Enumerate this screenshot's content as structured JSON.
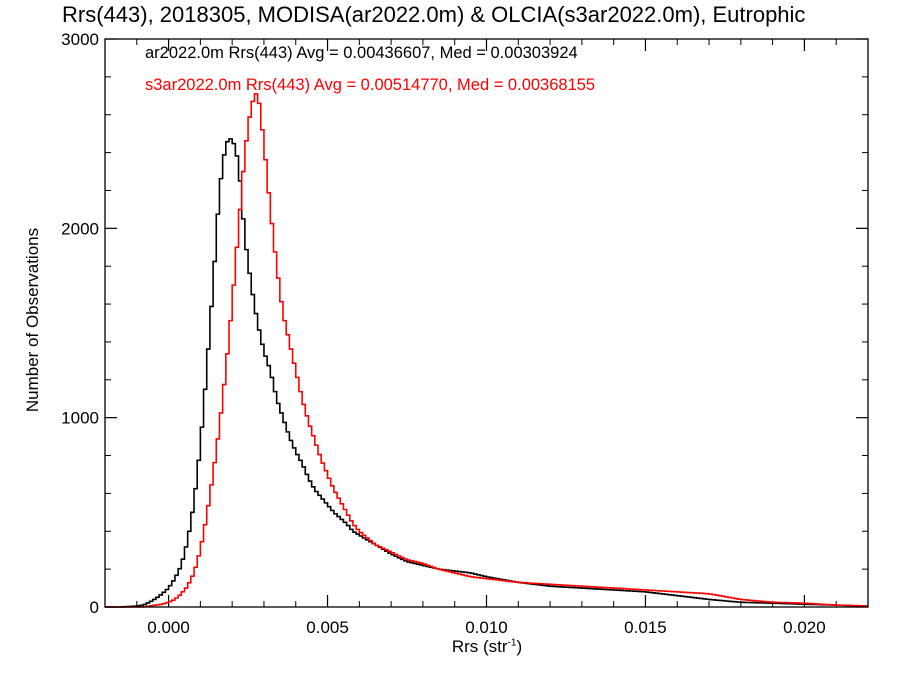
{
  "chart_data": {
    "type": "histogram",
    "title": "Rrs(443), 2018305, MODISA(ar2022.0m) & OLCIA(s3ar2022.0m), Eutrophic",
    "xlabel": "Rrs (str",
    "xlabel_sup": "-1",
    "xlabel_close": ")",
    "ylabel": "Number of Observations",
    "xlim": [
      -0.002,
      0.022
    ],
    "ylim": [
      0,
      3000
    ],
    "xticks": [
      "0.000",
      "0.005",
      "0.010",
      "0.015",
      "0.020"
    ],
    "yticks": [
      "0",
      "1000",
      "2000",
      "3000"
    ],
    "annotations": [
      {
        "text": "ar2022.0m Rrs(443) Avg = 0.00436607, Med = 0.00303924",
        "color": "#000000"
      },
      {
        "text": "s3ar2022.0m Rrs(443) Avg = 0.00514770, Med = 0.00368155",
        "color": "#ff0000"
      }
    ],
    "bin_width": 0.0001,
    "x": [
      -0.002,
      -0.0015,
      -0.001,
      -0.0008,
      -0.0006,
      -0.0004,
      -0.0002,
      0.0,
      0.0002,
      0.0004,
      0.0006,
      0.0008,
      0.001,
      0.0012,
      0.0014,
      0.0016,
      0.0018,
      0.002,
      0.0022,
      0.0024,
      0.0026,
      0.0028,
      0.003,
      0.0032,
      0.0034,
      0.0036,
      0.0038,
      0.004,
      0.0042,
      0.0044,
      0.0046,
      0.0048,
      0.005,
      0.0052,
      0.0054,
      0.0056,
      0.0058,
      0.006,
      0.0065,
      0.007,
      0.0075,
      0.008,
      0.0085,
      0.009,
      0.0095,
      0.01,
      0.011,
      0.012,
      0.013,
      0.014,
      0.015,
      0.016,
      0.017,
      0.018,
      0.019,
      0.02,
      0.021,
      0.022
    ],
    "series": [
      {
        "name": "ar2022.0m",
        "color": "#000000",
        "values": [
          0,
          0,
          5,
          10,
          25,
          45,
          70,
          100,
          150,
          220,
          350,
          550,
          850,
          1250,
          1700,
          2200,
          2450,
          2480,
          2350,
          1950,
          1700,
          1500,
          1350,
          1250,
          1100,
          1000,
          900,
          820,
          760,
          680,
          620,
          580,
          540,
          500,
          470,
          440,
          400,
          380,
          330,
          280,
          240,
          220,
          200,
          190,
          180,
          160,
          130,
          110,
          100,
          90,
          80,
          60,
          40,
          25,
          20,
          15,
          10,
          5
        ]
      },
      {
        "name": "s3ar2022.0m",
        "color": "#ff0000",
        "values": [
          0,
          0,
          0,
          0,
          5,
          10,
          15,
          25,
          40,
          70,
          110,
          180,
          300,
          480,
          700,
          950,
          1250,
          1600,
          2000,
          2400,
          2650,
          2730,
          2450,
          2100,
          1800,
          1550,
          1400,
          1250,
          1100,
          980,
          880,
          780,
          700,
          620,
          560,
          500,
          440,
          400,
          330,
          290,
          250,
          230,
          200,
          180,
          160,
          150,
          130,
          120,
          110,
          100,
          90,
          80,
          70,
          40,
          25,
          20,
          10,
          5
        ]
      }
    ]
  }
}
